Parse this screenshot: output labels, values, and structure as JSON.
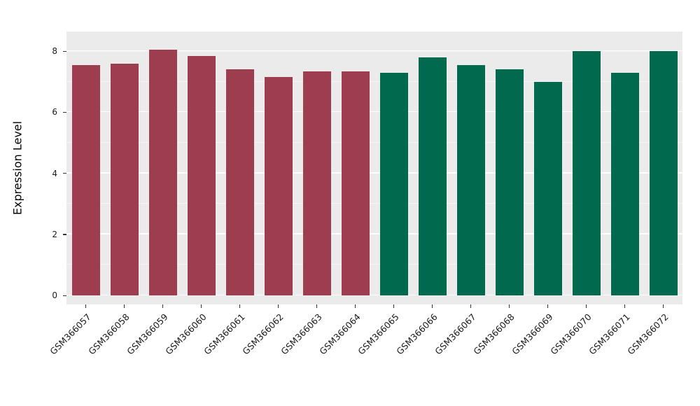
{
  "chart_data": {
    "type": "bar",
    "title": "",
    "xlabel": "",
    "ylabel": "Expression Level",
    "ylim": [
      0,
      8.6
    ],
    "yticks": [
      0,
      2,
      4,
      6,
      8
    ],
    "minor_yticks": [
      1,
      3,
      5,
      7
    ],
    "grid": "on",
    "legend": "none",
    "panel_bg": "#ebebeb",
    "grid_color": "#ffffff",
    "categories": [
      "GSM366057",
      "GSM366058",
      "GSM366059",
      "GSM366060",
      "GSM366061",
      "GSM366062",
      "GSM366063",
      "GSM366064",
      "GSM366065",
      "GSM366066",
      "GSM366067",
      "GSM366068",
      "GSM366069",
      "GSM366070",
      "GSM366071",
      "GSM366072"
    ],
    "values": [
      7.55,
      7.6,
      8.05,
      7.85,
      7.4,
      7.15,
      7.35,
      7.35,
      7.3,
      7.8,
      7.55,
      7.4,
      7.0,
      8.0,
      7.3,
      8.0
    ],
    "group_colors": {
      "group1": "#9e3d4f",
      "group2": "#00694e"
    },
    "groups": [
      "group1",
      "group1",
      "group1",
      "group1",
      "group1",
      "group1",
      "group1",
      "group1",
      "group2",
      "group2",
      "group2",
      "group2",
      "group2",
      "group2",
      "group2",
      "group2"
    ]
  }
}
